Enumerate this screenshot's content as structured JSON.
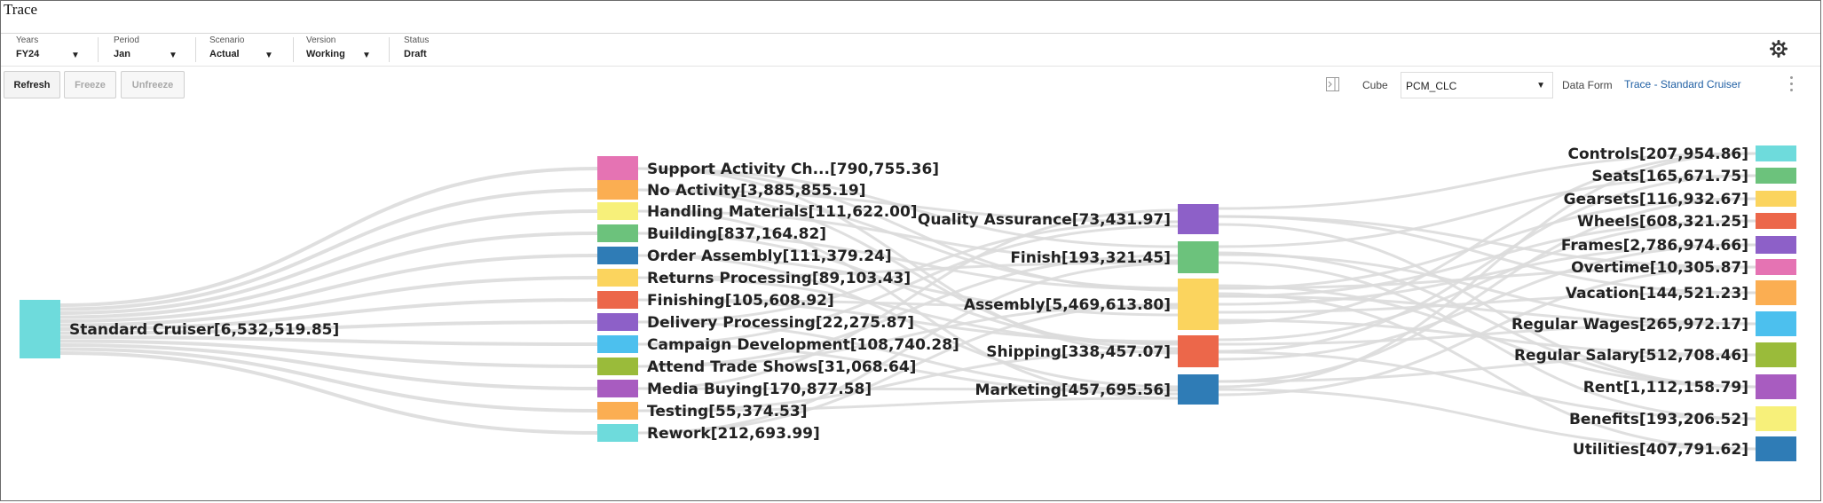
{
  "app": {
    "title": "Trace"
  },
  "pov": [
    {
      "label": "Years",
      "value": "FY24",
      "dropdown": true
    },
    {
      "label": "Period",
      "value": "Jan",
      "dropdown": true
    },
    {
      "label": "Scenario",
      "value": "Actual",
      "dropdown": true
    },
    {
      "label": "Version",
      "value": "Working",
      "dropdown": true
    },
    {
      "label": "Status",
      "value": "Draft",
      "dropdown": false
    }
  ],
  "toolbar": {
    "refresh": "Refresh",
    "freeze": "Freeze",
    "unfreeze": "Unfreeze"
  },
  "cube": {
    "label": "Cube",
    "value": "PCM_CLC"
  },
  "data_form": {
    "label": "Data Form",
    "link": "Trace - Standard Cruiser"
  },
  "icons": [
    "gear-icon",
    "panel-toggle-icon",
    "chevron-down-icon",
    "more-options-icon"
  ],
  "sankey": {
    "source": {
      "label": "Standard Cruiser[6,532,519.85]",
      "color": "#6edbdc"
    },
    "activities": [
      {
        "label": "Support Activity Ch...[790,755.36]",
        "color": "#e573b3"
      },
      {
        "label": "No Activity[3,885,855.19]",
        "color": "#fbae52"
      },
      {
        "label": "Handling Materials[111,622.00]",
        "color": "#f7f07a"
      },
      {
        "label": "Building[837,164.82]",
        "color": "#6cc27c"
      },
      {
        "label": "Order Assembly[111,379.24]",
        "color": "#2f7cb6"
      },
      {
        "label": "Returns Processing[89,103.43]",
        "color": "#fbd45e"
      },
      {
        "label": "Finishing[105,608.92]",
        "color": "#ec674a"
      },
      {
        "label": "Delivery Processing[22,275.87]",
        "color": "#8d60c8"
      },
      {
        "label": "Campaign Development[108,740.28]",
        "color": "#4cc0ee"
      },
      {
        "label": "Attend Trade Shows[31,068.64]",
        "color": "#9abb3a"
      },
      {
        "label": "Media Buying[170,877.58]",
        "color": "#a85cc0"
      },
      {
        "label": "Testing[55,374.53]",
        "color": "#fbae52"
      },
      {
        "label": "Rework[212,693.99]",
        "color": "#6edbdc"
      }
    ],
    "departments": [
      {
        "label": "Quality Assurance[73,431.97]",
        "color": "#8d60c8"
      },
      {
        "label": "Finish[193,321.45]",
        "color": "#6cc27c"
      },
      {
        "label": "Assembly[5,469,613.80]",
        "color": "#fbd45e"
      },
      {
        "label": "Shipping[338,457.07]",
        "color": "#ec674a"
      },
      {
        "label": "Marketing[457,695.56]",
        "color": "#2f7cb6"
      }
    ],
    "accounts": [
      {
        "label": "Controls[207,954.86]",
        "color": "#6edbdc"
      },
      {
        "label": "Seats[165,671.75]",
        "color": "#6cc27c"
      },
      {
        "label": "Gearsets[116,932.67]",
        "color": "#fbd45e"
      },
      {
        "label": "Wheels[608,321.25]",
        "color": "#ec674a"
      },
      {
        "label": "Frames[2,786,974.66]",
        "color": "#8d60c8"
      },
      {
        "label": "Overtime[10,305.87]",
        "color": "#e573b3"
      },
      {
        "label": "Vacation[144,521.23]",
        "color": "#fbae52"
      },
      {
        "label": "Regular Wages[265,972.17]",
        "color": "#4cc0ee"
      },
      {
        "label": "Regular Salary[512,708.46]",
        "color": "#9abb3a"
      },
      {
        "label": "Rent[1,112,158.79]",
        "color": "#a85cc0"
      },
      {
        "label": "Benefits[193,206.52]",
        "color": "#f7f07a"
      },
      {
        "label": "Utilities[407,791.62]",
        "color": "#2f7cb6"
      }
    ]
  }
}
